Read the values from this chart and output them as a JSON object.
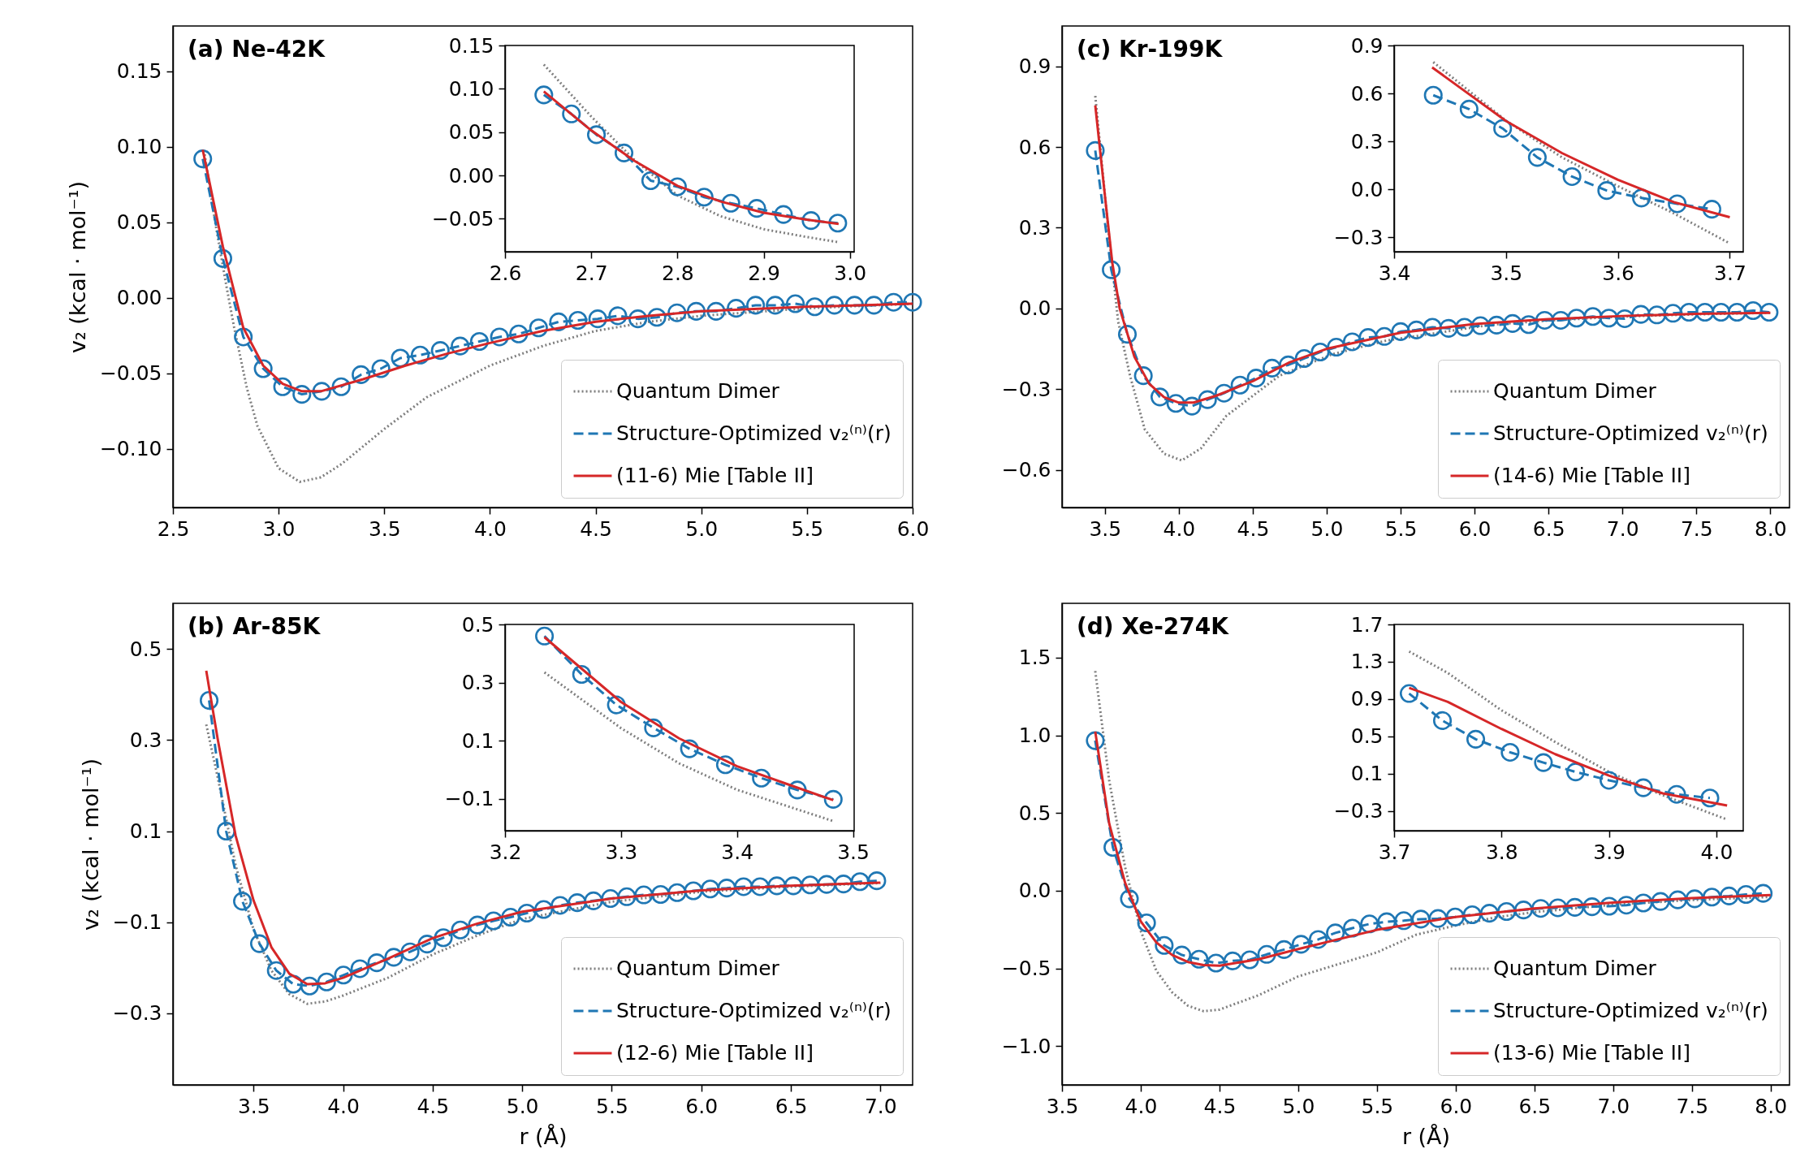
{
  "chart_data": [
    {
      "type": "line",
      "title": "(a) Ne-42K",
      "ylabel": "v₂ (kcal · mol⁻¹)",
      "legend": "bottom right",
      "xlim": [
        2.5,
        6.0
      ],
      "ylim": [
        -0.139,
        0.18
      ],
      "xticks": [
        2.5,
        {
          "value": 3,
          "label": "3.0"
        },
        3.5,
        {
          "value": 4,
          "label": "4.0"
        },
        4.5,
        {
          "value": 5,
          "label": "5.0"
        },
        5.5,
        {
          "value": 6,
          "label": "6.0"
        }
      ],
      "yticks": [
        {
          "value": -0.1,
          "label": "−0.10"
        },
        {
          "value": -0.05,
          "label": "−0.05"
        },
        {
          "value": 0,
          "label": "0.00"
        },
        0.05,
        {
          "value": 0.1,
          "label": "0.10"
        },
        0.15
      ],
      "series": [
        {
          "name": "Quantum Dimer",
          "color": "#7f7f7f",
          "line_style": "dotted",
          "x": [
            2.65,
            2.7,
            2.75,
            2.79,
            2.85,
            2.9,
            3.0,
            3.1,
            3.2,
            3.3,
            3.5,
            3.7,
            4.0,
            4.25,
            4.5,
            4.75,
            5.0,
            5.5,
            6.0
          ],
          "values": [
            0.095,
            0.05,
            0.01,
            -0.02,
            -0.06,
            -0.085,
            -0.113,
            -0.122,
            -0.119,
            -0.11,
            -0.087,
            -0.066,
            -0.045,
            -0.032,
            -0.022,
            -0.016,
            -0.012,
            -0.007,
            -0.004
          ]
        },
        {
          "name": "Structure-Optimized v₂⁽ⁿ⁾(r)",
          "color": "#1f77b4",
          "line_style": "dashed",
          "marker": "circle",
          "x": [
            2.641,
            2.736,
            2.833,
            2.927,
            3.019,
            3.11,
            3.204,
            3.296,
            3.39,
            3.484,
            3.576,
            3.67,
            3.765,
            3.859,
            3.95,
            4.045,
            4.136,
            4.23,
            4.325,
            4.416,
            4.51,
            4.605,
            4.7,
            4.79,
            4.885,
            4.976,
            5.07,
            5.165,
            5.257,
            5.35,
            5.445,
            5.537,
            5.63,
            5.725,
            5.817,
            5.91,
            6.0
          ],
          "values": [
            0.092,
            0.026,
            -0.026,
            -0.047,
            -0.059,
            -0.064,
            -0.062,
            -0.059,
            -0.051,
            -0.047,
            -0.04,
            -0.038,
            -0.035,
            -0.032,
            -0.029,
            -0.026,
            -0.024,
            -0.02,
            -0.016,
            -0.015,
            -0.014,
            -0.012,
            -0.014,
            -0.013,
            -0.01,
            -0.009,
            -0.009,
            -0.007,
            -0.005,
            -0.005,
            -0.004,
            -0.006,
            -0.005,
            -0.005,
            -0.005,
            -0.003,
            -0.003
          ]
        },
        {
          "name": "(11-6) Mie [Table II]",
          "color": "#d62728",
          "line_style": "solid",
          "x": [
            2.641,
            2.736,
            2.833,
            2.927,
            3.019,
            3.11,
            3.2,
            3.4,
            3.6,
            3.8,
            4.0,
            4.25,
            4.5,
            4.75,
            5.0,
            5.5,
            6.0
          ],
          "values": [
            0.098,
            0.034,
            -0.02,
            -0.045,
            -0.057,
            -0.062,
            -0.062,
            -0.054,
            -0.045,
            -0.037,
            -0.03,
            -0.022,
            -0.016,
            -0.012,
            -0.009,
            -0.006,
            -0.004
          ]
        }
      ]
    },
    {
      "type": "line",
      "xlim": [
        2.6,
        3.005
      ],
      "ylim": [
        -0.088,
        0.15
      ],
      "xticks": [
        2.6,
        2.7,
        2.8,
        2.9,
        {
          "value": 3,
          "label": "3.0"
        }
      ],
      "yticks": [
        {
          "value": -0.05,
          "label": "−0.05"
        },
        {
          "value": 0,
          "label": "0.00"
        },
        0.05,
        {
          "value": 0.1,
          "label": "0.10"
        },
        0.15
      ],
      "series": [
        {
          "color": "#7f7f7f",
          "line_style": "dotted",
          "x": [
            2.645,
            2.7,
            2.75,
            2.8,
            2.85,
            2.9,
            2.95,
            2.987
          ],
          "values": [
            0.128,
            0.068,
            0.018,
            -0.023,
            -0.047,
            -0.062,
            -0.071,
            -0.077
          ]
        },
        {
          "color": "#1f77b4",
          "line_style": "dashed",
          "marker": "circle",
          "x": [
            2.645,
            2.677,
            2.706,
            2.738,
            2.769,
            2.8,
            2.831,
            2.862,
            2.892,
            2.923,
            2.955,
            2.986
          ],
          "values": [
            0.093,
            0.071,
            0.047,
            0.026,
            -0.006,
            -0.013,
            -0.025,
            -0.032,
            -0.038,
            -0.045,
            -0.052,
            -0.055
          ]
        },
        {
          "color": "#d62728",
          "line_style": "solid",
          "x": [
            2.645,
            2.7,
            2.75,
            2.8,
            2.85,
            2.9,
            2.95,
            2.987
          ],
          "values": [
            0.097,
            0.052,
            0.017,
            -0.012,
            -0.03,
            -0.043,
            -0.051,
            -0.056
          ]
        }
      ]
    },
    {
      "type": "line",
      "title": "(c) Kr-199K",
      "legend": "bottom right",
      "xlim": [
        3.21,
        8.13
      ],
      "ylim": [
        -0.74,
        1.05
      ],
      "xticks": [
        3.5,
        {
          "value": 4,
          "label": "4.0"
        },
        4.5,
        {
          "value": 5,
          "label": "5.0"
        },
        5.5,
        {
          "value": 6,
          "label": "6.0"
        },
        6.5,
        {
          "value": 7,
          "label": "7.0"
        },
        7.5,
        {
          "value": 8,
          "label": "8.0"
        }
      ],
      "yticks": [
        {
          "value": -0.6,
          "label": "−0.6"
        },
        {
          "value": -0.3,
          "label": "−0.3"
        },
        {
          "value": 0,
          "label": "0.0"
        },
        0.3,
        0.6,
        0.9
      ],
      "series": [
        {
          "name": "Quantum Dimer",
          "color": "#7f7f7f",
          "line_style": "dotted",
          "x": [
            3.435,
            3.52,
            3.59,
            3.67,
            3.77,
            3.9,
            4.02,
            4.15,
            4.32,
            4.5,
            4.68,
            5.04,
            5.4,
            5.76,
            6.12,
            6.5,
            7.0,
            7.5,
            8.0
          ],
          "values": [
            0.79,
            0.31,
            -0.05,
            -0.25,
            -0.45,
            -0.54,
            -0.565,
            -0.52,
            -0.4,
            -0.325,
            -0.25,
            -0.17,
            -0.12,
            -0.09,
            -0.06,
            -0.045,
            -0.03,
            -0.022,
            -0.016
          ]
        },
        {
          "name": "Structure-Optimized v₂⁽ⁿ⁾(r)",
          "color": "#1f77b4",
          "line_style": "dashed",
          "marker": "circle",
          "x": [
            3.435,
            3.543,
            3.652,
            3.76,
            3.872,
            3.98,
            4.089,
            4.194,
            4.306,
            4.414,
            4.523,
            4.63,
            4.74,
            4.848,
            4.956,
            5.065,
            5.173,
            5.28,
            5.39,
            5.5,
            5.607,
            5.715,
            5.824,
            5.932,
            6.04,
            6.149,
            6.257,
            6.366,
            6.474,
            6.583,
            6.69,
            6.8,
            6.908,
            7.016,
            7.125,
            7.233,
            7.342,
            7.45,
            7.558,
            7.667,
            7.775,
            7.884,
            7.992
          ],
          "values": [
            0.587,
            0.144,
            -0.096,
            -0.25,
            -0.329,
            -0.353,
            -0.363,
            -0.339,
            -0.315,
            -0.285,
            -0.259,
            -0.222,
            -0.21,
            -0.186,
            -0.162,
            -0.144,
            -0.124,
            -0.108,
            -0.104,
            -0.086,
            -0.08,
            -0.07,
            -0.074,
            -0.07,
            -0.064,
            -0.062,
            -0.056,
            -0.06,
            -0.044,
            -0.044,
            -0.036,
            -0.03,
            -0.036,
            -0.038,
            -0.022,
            -0.024,
            -0.018,
            -0.014,
            -0.014,
            -0.014,
            -0.014,
            -0.008,
            -0.014
          ]
        },
        {
          "name": "(14-6) Mie [Table II]",
          "color": "#d62728",
          "line_style": "solid",
          "x": [
            3.435,
            3.5,
            3.55,
            3.6,
            3.7,
            3.8,
            3.9,
            4.0,
            4.1,
            4.25,
            4.5,
            4.75,
            5.0,
            5.5,
            6.0,
            6.5,
            7.0,
            7.5,
            8.0
          ],
          "values": [
            0.755,
            0.42,
            0.17,
            0.0,
            -0.18,
            -0.28,
            -0.33,
            -0.35,
            -0.35,
            -0.325,
            -0.27,
            -0.2,
            -0.15,
            -0.09,
            -0.058,
            -0.04,
            -0.028,
            -0.02,
            -0.016
          ]
        }
      ]
    },
    {
      "type": "line",
      "xlim": [
        3.4,
        3.712
      ],
      "ylim": [
        -0.39,
        0.9
      ],
      "xticks": [
        3.4,
        3.5,
        3.6,
        3.7
      ],
      "yticks": [
        {
          "value": -0.3,
          "label": "−0.3"
        },
        {
          "value": 0,
          "label": "0.0"
        },
        0.3,
        0.6,
        0.9
      ],
      "series": [
        {
          "color": "#7f7f7f",
          "line_style": "dotted",
          "x": [
            3.435,
            3.5,
            3.55,
            3.6,
            3.65,
            3.7
          ],
          "values": [
            0.796,
            0.43,
            0.2,
            0.02,
            -0.15,
            -0.338
          ]
        },
        {
          "color": "#1f77b4",
          "line_style": "dashed",
          "marker": "circle",
          "x": [
            3.435,
            3.467,
            3.497,
            3.528,
            3.559,
            3.59,
            3.621,
            3.653,
            3.684
          ],
          "values": [
            0.589,
            0.502,
            0.381,
            0.2,
            0.08,
            -0.007,
            -0.054,
            -0.09,
            -0.124
          ]
        },
        {
          "color": "#d62728",
          "line_style": "solid",
          "x": [
            3.434,
            3.5,
            3.55,
            3.6,
            3.65,
            3.7
          ],
          "values": [
            0.763,
            0.428,
            0.227,
            0.06,
            -0.08,
            -0.174
          ]
        }
      ]
    },
    {
      "type": "line",
      "title": "(b) Ar-85K",
      "xlabel": "r (Å)",
      "ylabel": "v₂ (kcal · mol⁻¹)",
      "legend": "bottom right",
      "xlim": [
        3.05,
        7.18
      ],
      "ylim": [
        -0.457,
        0.6
      ],
      "xticks": [
        3.5,
        {
          "value": 4,
          "label": "4.0"
        },
        4.5,
        {
          "value": 5,
          "label": "5.0"
        },
        5.5,
        {
          "value": 6,
          "label": "6.0"
        },
        6.5,
        {
          "value": 7,
          "label": "7.0"
        }
      ],
      "yticks": [
        {
          "value": -0.3,
          "label": "−0.3"
        },
        {
          "value": -0.1,
          "label": "−0.1"
        },
        0.1,
        0.3,
        0.5
      ],
      "series": [
        {
          "name": "Quantum Dimer",
          "color": "#7f7f7f",
          "line_style": "dotted",
          "x": [
            3.236,
            3.3,
            3.4,
            3.5,
            3.6,
            3.7,
            3.8,
            3.9,
            4.0,
            4.25,
            4.5,
            4.75,
            5.0,
            5.5,
            6.0,
            6.5,
            7.0
          ],
          "values": [
            0.334,
            0.218,
            0.025,
            -0.116,
            -0.206,
            -0.258,
            -0.279,
            -0.274,
            -0.261,
            -0.222,
            -0.171,
            -0.129,
            -0.093,
            -0.055,
            -0.033,
            -0.022,
            -0.014
          ]
        },
        {
          "name": "Structure-Optimized v₂⁽ⁿ⁾(r)",
          "color": "#1f77b4",
          "line_style": "dashed",
          "marker": "circle",
          "x": [
            3.252,
            3.347,
            3.438,
            3.533,
            3.627,
            3.722,
            3.813,
            3.908,
            4.002,
            4.094,
            4.188,
            4.283,
            4.374,
            4.469,
            4.56,
            4.655,
            4.75,
            4.84,
            4.935,
            5.026,
            5.12,
            5.212,
            5.307,
            5.398,
            5.493,
            5.584,
            5.679,
            5.773,
            5.865,
            5.956,
            6.05,
            6.142,
            6.236,
            6.328,
            6.422,
            6.514,
            6.608,
            6.7,
            6.794,
            6.886,
            6.98
          ],
          "values": [
            0.387,
            0.1,
            -0.054,
            -0.147,
            -0.206,
            -0.236,
            -0.24,
            -0.231,
            -0.216,
            -0.202,
            -0.189,
            -0.177,
            -0.165,
            -0.148,
            -0.134,
            -0.117,
            -0.106,
            -0.097,
            -0.089,
            -0.08,
            -0.072,
            -0.063,
            -0.057,
            -0.053,
            -0.048,
            -0.044,
            -0.04,
            -0.039,
            -0.035,
            -0.031,
            -0.027,
            -0.025,
            -0.022,
            -0.022,
            -0.02,
            -0.02,
            -0.018,
            -0.017,
            -0.016,
            -0.011,
            -0.009
          ]
        },
        {
          "name": "(12-6) Mie [Table II]",
          "color": "#d62728",
          "line_style": "solid",
          "x": [
            3.236,
            3.3,
            3.4,
            3.5,
            3.6,
            3.7,
            3.8,
            3.9,
            4.0,
            4.25,
            4.5,
            4.75,
            5.0,
            5.5,
            6.0,
            6.5,
            7.0
          ],
          "values": [
            0.452,
            0.302,
            0.09,
            -0.052,
            -0.155,
            -0.213,
            -0.236,
            -0.234,
            -0.222,
            -0.18,
            -0.135,
            -0.103,
            -0.077,
            -0.048,
            -0.03,
            -0.02,
            -0.013
          ]
        }
      ]
    },
    {
      "type": "line",
      "xlim": [
        3.2,
        3.501
      ],
      "ylim": [
        -0.21,
        0.5
      ],
      "xticks": [
        3.2,
        3.3,
        3.4,
        3.5
      ],
      "yticks": [
        {
          "value": -0.1,
          "label": "−0.1"
        },
        0.1,
        0.3,
        0.5
      ],
      "series": [
        {
          "color": "#7f7f7f",
          "line_style": "dotted",
          "x": [
            3.234,
            3.3,
            3.35,
            3.4,
            3.45,
            3.483
          ],
          "values": [
            0.335,
            0.143,
            0.022,
            -0.069,
            -0.134,
            -0.177
          ]
        },
        {
          "color": "#1f77b4",
          "line_style": "dashed",
          "marker": "circle",
          "x": [
            3.234,
            3.266,
            3.296,
            3.328,
            3.359,
            3.39,
            3.421,
            3.452,
            3.483
          ],
          "values": [
            0.46,
            0.328,
            0.223,
            0.144,
            0.072,
            0.017,
            -0.029,
            -0.07,
            -0.102
          ]
        },
        {
          "color": "#d62728",
          "line_style": "solid",
          "x": [
            3.234,
            3.3,
            3.35,
            3.4,
            3.45,
            3.483
          ],
          "values": [
            0.456,
            0.233,
            0.108,
            0.012,
            -0.059,
            -0.105
          ]
        }
      ]
    },
    {
      "type": "line",
      "title": "(d) Xe-274K",
      "xlabel": "r (Å)",
      "legend": "bottom right",
      "xlim": [
        3.5,
        8.12
      ],
      "ylim": [
        -1.25,
        1.85
      ],
      "xticks": [
        3.5,
        {
          "value": 4,
          "label": "4.0"
        },
        4.5,
        {
          "value": 5,
          "label": "5.0"
        },
        5.5,
        {
          "value": 6,
          "label": "6.0"
        },
        6.5,
        {
          "value": 7,
          "label": "7.0"
        },
        7.5,
        {
          "value": 8,
          "label": "8.0"
        }
      ],
      "yticks": [
        {
          "value": -1,
          "label": "−1.0"
        },
        {
          "value": -0.5,
          "label": "−0.5"
        },
        {
          "value": 0,
          "label": "0.0"
        },
        0.5,
        {
          "value": 1,
          "label": "1.0"
        },
        1.5
      ],
      "series": [
        {
          "name": "Quantum Dimer",
          "color": "#7f7f7f",
          "line_style": "dotted",
          "x": [
            3.711,
            3.8,
            3.9,
            4.0,
            4.1,
            4.2,
            4.3,
            4.4,
            4.5,
            4.75,
            5.0,
            5.5,
            5.75,
            6.0,
            6.25,
            6.5,
            7.0,
            7.5,
            8.0
          ],
          "values": [
            1.414,
            0.707,
            0.155,
            -0.259,
            -0.517,
            -0.655,
            -0.741,
            -0.776,
            -0.766,
            -0.672,
            -0.552,
            -0.397,
            -0.283,
            -0.224,
            -0.172,
            -0.138,
            -0.09,
            -0.06,
            -0.04
          ]
        },
        {
          "name": "Structure-Optimized v₂⁽ⁿ⁾(r)",
          "color": "#1f77b4",
          "line_style": "dashed",
          "marker": "circle",
          "x": [
            3.711,
            3.823,
            3.928,
            4.037,
            4.149,
            4.261,
            4.37,
            4.478,
            4.584,
            4.692,
            4.8,
            4.91,
            5.018,
            5.127,
            5.236,
            5.344,
            5.453,
            5.562,
            5.67,
            5.779,
            5.888,
            5.997,
            6.105,
            6.214,
            6.323,
            6.431,
            6.54,
            6.649,
            6.757,
            6.866,
            6.975,
            7.084,
            7.192,
            7.301,
            7.41,
            7.518,
            7.627,
            7.736,
            7.844,
            7.953
          ],
          "values": [
            0.966,
            0.279,
            -0.052,
            -0.207,
            -0.352,
            -0.414,
            -0.441,
            -0.466,
            -0.452,
            -0.445,
            -0.41,
            -0.379,
            -0.345,
            -0.314,
            -0.272,
            -0.241,
            -0.214,
            -0.2,
            -0.193,
            -0.183,
            -0.179,
            -0.169,
            -0.155,
            -0.145,
            -0.134,
            -0.124,
            -0.114,
            -0.11,
            -0.107,
            -0.103,
            -0.1,
            -0.093,
            -0.079,
            -0.069,
            -0.059,
            -0.052,
            -0.041,
            -0.034,
            -0.024,
            -0.017
          ]
        },
        {
          "name": "(13-6) Mie [Table II]",
          "color": "#d62728",
          "line_style": "solid",
          "x": [
            3.711,
            3.8,
            3.9,
            4.0,
            4.1,
            4.2,
            4.3,
            4.4,
            4.5,
            4.75,
            5.0,
            5.5,
            6.0,
            6.5,
            7.0,
            7.5,
            8.0
          ],
          "values": [
            1.024,
            0.431,
            0.052,
            -0.197,
            -0.334,
            -0.414,
            -0.459,
            -0.479,
            -0.483,
            -0.441,
            -0.376,
            -0.252,
            -0.169,
            -0.114,
            -0.076,
            -0.048,
            -0.028
          ]
        }
      ]
    },
    {
      "type": "line",
      "xlim": [
        3.7,
        4.025
      ],
      "ylim": [
        -0.51,
        1.7
      ],
      "xticks": [
        3.7,
        3.8,
        3.9,
        {
          "value": 4,
          "label": "4.0"
        }
      ],
      "yticks": [
        {
          "value": -0.3,
          "label": "−0.3"
        },
        0.1,
        0.5,
        0.9,
        1.3,
        1.7
      ],
      "series": [
        {
          "color": "#7f7f7f",
          "line_style": "dotted",
          "x": [
            3.714,
            3.75,
            3.8,
            3.85,
            3.9,
            3.95,
            4.01
          ],
          "values": [
            1.41,
            1.18,
            0.78,
            0.44,
            0.12,
            -0.13,
            -0.39
          ]
        },
        {
          "color": "#1f77b4",
          "line_style": "dashed",
          "marker": "circle",
          "x": [
            3.714,
            3.745,
            3.776,
            3.808,
            3.839,
            3.869,
            3.9,
            3.932,
            3.963,
            3.994
          ],
          "values": [
            0.96,
            0.67,
            0.47,
            0.33,
            0.22,
            0.12,
            0.03,
            -0.05,
            -0.12,
            -0.16
          ]
        },
        {
          "color": "#d62728",
          "line_style": "solid",
          "x": [
            3.714,
            3.75,
            3.8,
            3.85,
            3.9,
            3.95,
            4.01
          ],
          "values": [
            1.02,
            0.87,
            0.58,
            0.31,
            0.08,
            -0.11,
            -0.24
          ]
        }
      ]
    }
  ]
}
